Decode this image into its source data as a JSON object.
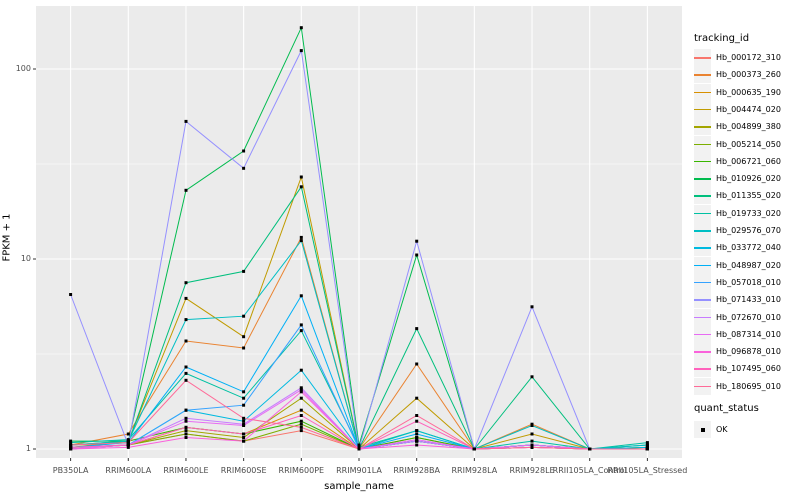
{
  "chart_data": {
    "type": "line",
    "x_type": "categorical",
    "y_scale": "log10",
    "title": "",
    "xlabel": "sample_name",
    "ylabel": "FPKM + 1",
    "y_ticks": [
      1,
      10,
      100
    ],
    "y_tick_labels": [
      "1",
      "10",
      "100"
    ],
    "ylim": [
      0.9,
      215
    ],
    "grid": true,
    "legend_position": "right",
    "legend_title": "tracking_id",
    "legend2_title": "quant_status",
    "legend2_items": [
      {
        "label": "OK",
        "marker": "black-square-point"
      }
    ],
    "categories": [
      "PB350LA",
      "RRIM600LA",
      "RRIM600LE",
      "RRIM600SE",
      "RRIM600PE",
      "RRIM901LA",
      "RRIM928BA",
      "RRIM928LA",
      "RRIM928LE",
      "RRII105LA_Control",
      "RRII105LA_Stressed"
    ],
    "series": [
      {
        "name": "Hb_000172_310",
        "color": "#F8766D",
        "values": [
          1.02,
          1.05,
          1.2,
          1.1,
          1.25,
          1.0,
          1.1,
          1.0,
          1.02,
          1.0,
          1.0
        ]
      },
      {
        "name": "Hb_000373_260",
        "color": "#EA8331",
        "values": [
          1.05,
          1.2,
          3.7,
          3.4,
          13.0,
          1.0,
          2.8,
          1.0,
          1.35,
          1.0,
          1.02
        ]
      },
      {
        "name": "Hb_000635_190",
        "color": "#D89000",
        "values": [
          1.0,
          1.05,
          1.3,
          1.2,
          1.6,
          1.0,
          1.15,
          1.0,
          1.05,
          1.0,
          1.0
        ]
      },
      {
        "name": "Hb_004474_020",
        "color": "#C09B00",
        "values": [
          1.02,
          1.1,
          6.2,
          3.9,
          27.0,
          1.0,
          1.85,
          1.0,
          1.2,
          1.0,
          1.0
        ]
      },
      {
        "name": "Hb_004899_380",
        "color": "#A3A500",
        "values": [
          1.0,
          1.05,
          1.25,
          1.15,
          1.85,
          1.0,
          1.1,
          1.0,
          1.05,
          1.0,
          1.0
        ]
      },
      {
        "name": "Hb_005214_050",
        "color": "#7CAE00",
        "values": [
          1.02,
          1.05,
          1.2,
          1.1,
          1.35,
          1.0,
          1.1,
          1.0,
          1.02,
          1.0,
          1.0
        ]
      },
      {
        "name": "Hb_006721_060",
        "color": "#39B600",
        "values": [
          1.05,
          1.1,
          1.3,
          1.2,
          1.4,
          1.0,
          1.15,
          1.0,
          1.05,
          1.0,
          1.02
        ]
      },
      {
        "name": "Hb_010926_020",
        "color": "#00BB4E",
        "values": [
          1.1,
          1.1,
          23.0,
          37.0,
          165,
          1.05,
          10.5,
          1.0,
          1.05,
          1.0,
          1.0
        ]
      },
      {
        "name": "Hb_011355_020",
        "color": "#00BF7D",
        "values": [
          1.05,
          1.08,
          7.5,
          8.6,
          24.0,
          1.0,
          4.3,
          1.0,
          2.4,
          1.0,
          1.05
        ]
      },
      {
        "name": "Hb_019733_020",
        "color": "#00C1A3",
        "values": [
          1.08,
          1.12,
          2.5,
          1.85,
          4.2,
          1.02,
          1.25,
          1.0,
          1.1,
          1.0,
          1.08
        ]
      },
      {
        "name": "Hb_029576_070",
        "color": "#00BFC4",
        "values": [
          1.05,
          1.1,
          4.8,
          5.0,
          12.5,
          1.0,
          1.25,
          1.0,
          1.33,
          1.0,
          1.05
        ]
      },
      {
        "name": "Hb_033772_040",
        "color": "#00BAE0",
        "values": [
          1.02,
          1.05,
          1.6,
          1.4,
          2.6,
          1.0,
          1.1,
          1.0,
          1.05,
          1.0,
          1.02
        ]
      },
      {
        "name": "Hb_048987_020",
        "color": "#00B0F6",
        "values": [
          1.02,
          1.08,
          2.7,
          2.0,
          6.4,
          1.0,
          1.2,
          1.0,
          1.05,
          1.0,
          1.0
        ]
      },
      {
        "name": "Hb_057018_010",
        "color": "#35A2FF",
        "values": [
          1.0,
          1.05,
          1.6,
          1.7,
          4.5,
          1.0,
          1.1,
          1.0,
          1.02,
          1.0,
          1.0
        ]
      },
      {
        "name": "Hb_071433_010",
        "color": "#9590FF",
        "values": [
          6.5,
          1.05,
          53.0,
          30.0,
          125,
          1.0,
          12.4,
          1.0,
          5.6,
          1.0,
          1.0
        ]
      },
      {
        "name": "Hb_072670_010",
        "color": "#C77CFF",
        "values": [
          1.02,
          1.05,
          1.45,
          1.35,
          2.1,
          1.0,
          1.1,
          1.0,
          1.05,
          1.0,
          1.0
        ]
      },
      {
        "name": "Hb_087314_010",
        "color": "#E76BF3",
        "values": [
          1.0,
          1.05,
          1.4,
          1.33,
          2.05,
          1.0,
          1.12,
          1.0,
          1.05,
          1.0,
          1.0
        ]
      },
      {
        "name": "Hb_096878_010",
        "color": "#FA62DB",
        "values": [
          1.0,
          1.02,
          1.15,
          1.1,
          2.0,
          1.0,
          1.05,
          1.0,
          1.02,
          1.0,
          1.0
        ]
      },
      {
        "name": "Hb_107495_060",
        "color": "#FF62BC",
        "values": [
          1.02,
          1.05,
          1.3,
          1.2,
          1.5,
          1.0,
          1.4,
          1.0,
          1.02,
          1.0,
          1.0
        ]
      },
      {
        "name": "Hb_180695_010",
        "color": "#FF6A98",
        "values": [
          1.05,
          1.08,
          2.3,
          1.45,
          1.3,
          1.0,
          1.5,
          1.0,
          1.02,
          1.0,
          1.0
        ]
      }
    ],
    "colors": {
      "panel_bg": "#EBEBEB",
      "grid": "#FFFFFF",
      "tick_text": "#4D4D4D",
      "tick_mark": "#333333",
      "point": "#000000",
      "legend_key_bg": "#F2F2F2"
    }
  }
}
